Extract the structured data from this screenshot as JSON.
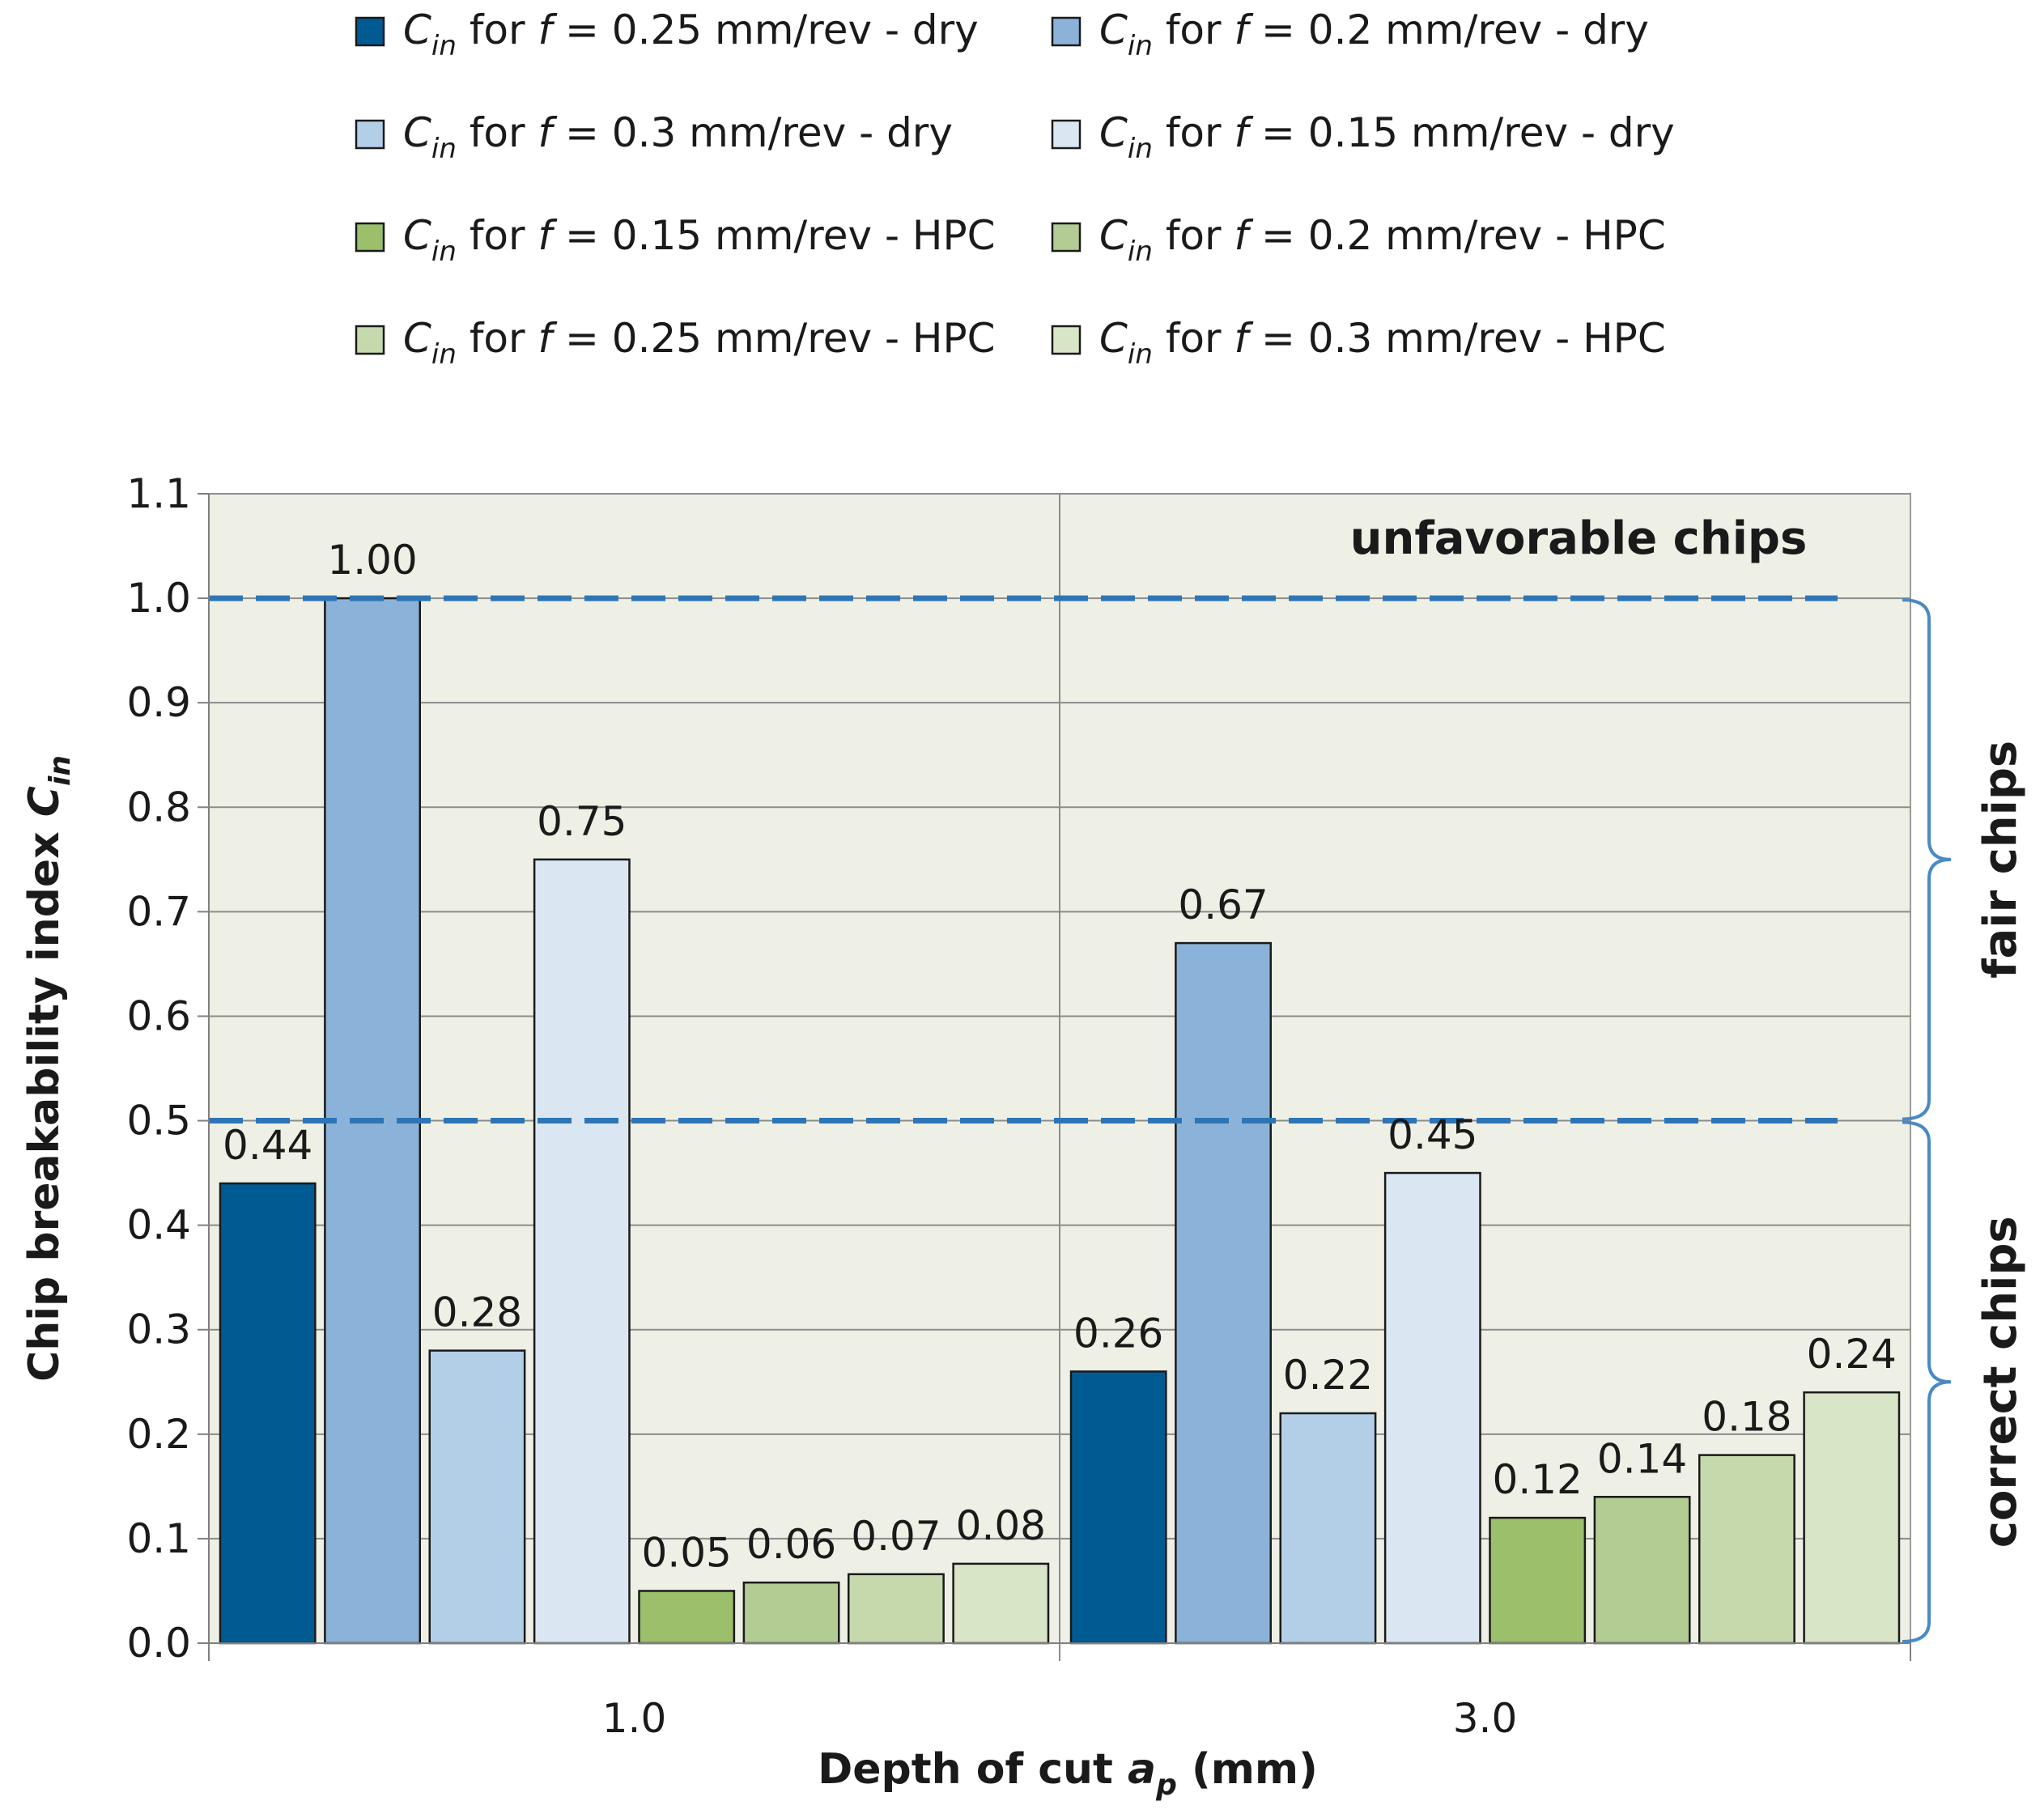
{
  "chart_data": {
    "type": "bar",
    "title": "",
    "xlabel": "Depth of cut a_p (mm)",
    "xlabel_parts": {
      "prefix": "Depth of cut",
      "var": "a",
      "sub": "p",
      "suffix": "(mm)"
    },
    "ylabel": "Chip breakability index C_in",
    "ylabel_parts": {
      "prefix": "Chip breakability index",
      "var": "C",
      "sub": "in"
    },
    "ylim": [
      0.0,
      1.1
    ],
    "yticks": [
      "0.0",
      "0.1",
      "0.2",
      "0.3",
      "0.4",
      "0.5",
      "0.6",
      "0.7",
      "0.8",
      "0.9",
      "1.0",
      "1.1"
    ],
    "grid": true,
    "legend_position": "top",
    "categories": [
      "1.0",
      "3.0"
    ],
    "series": [
      {
        "name": "C_in for f = 0.25 mm/rev - dry",
        "label_tail": " = 0.25 mm/rev - dry",
        "color": "#005b93",
        "values": [
          0.44,
          0.26
        ],
        "labels": [
          "0.44",
          "0.26"
        ]
      },
      {
        "name": "C_in for f = 0.2 mm/rev - dry",
        "label_tail": " = 0.2 mm/rev - dry",
        "color": "#8bb3d9",
        "values": [
          1.0,
          0.67
        ],
        "labels": [
          "1.00",
          "0.67"
        ]
      },
      {
        "name": "C_in for f = 0.3 mm/rev - dry",
        "label_tail": " = 0.3 mm/rev - dry",
        "color": "#b3cfe8",
        "values": [
          0.28,
          0.22
        ],
        "labels": [
          "0.28",
          "0.22"
        ]
      },
      {
        "name": "C_in for f = 0.15 mm/rev - dry",
        "label_tail": " = 0.15 mm/rev - dry",
        "color": "#dae7f3",
        "values": [
          0.75,
          0.45
        ],
        "labels": [
          "0.75",
          "0.45"
        ]
      },
      {
        "name": "C_in for f = 0.15 mm/rev - HPC",
        "label_tail": " = 0.15 mm/rev - HPC",
        "color": "#9bbf6b",
        "values": [
          0.05,
          0.12
        ],
        "labels": [
          "0.05",
          "0.12"
        ]
      },
      {
        "name": "C_in for f = 0.2 mm/rev - HPC",
        "label_tail": " = 0.2 mm/rev - HPC",
        "color": "#b3cc93",
        "values": [
          0.058,
          0.14
        ],
        "labels": [
          "0.06",
          "0.14"
        ]
      },
      {
        "name": "C_in for f = 0.25 mm/rev - HPC",
        "label_tail": " = 0.25 mm/rev - HPC",
        "color": "#c6d9ad",
        "values": [
          0.066,
          0.18
        ],
        "labels": [
          "0.07",
          "0.18"
        ]
      },
      {
        "name": "C_in for f = 0.3 mm/rev - HPC",
        "label_tail": " = 0.3 mm/rev - HPC",
        "color": "#d8e5c7",
        "values": [
          0.076,
          0.24
        ],
        "labels": [
          "0.08",
          "0.24"
        ]
      }
    ],
    "legend_prefix": {
      "var": "C",
      "sub": "in",
      "word": "for",
      "fvar": "f"
    },
    "thresholds": [
      {
        "value": 1.0,
        "color": "#2e75b6"
      },
      {
        "value": 0.5,
        "color": "#2e75b6"
      }
    ],
    "zones": [
      {
        "text": "unfavorable  chips",
        "from": 1.0,
        "to": 1.1
      },
      {
        "text": "fair chips",
        "from": 0.5,
        "to": 1.0
      },
      {
        "text": "correct chips",
        "from": 0.0,
        "to": 0.5
      }
    ],
    "plot_background": "#eef0e6",
    "brace_color": "#4a8ac4"
  }
}
